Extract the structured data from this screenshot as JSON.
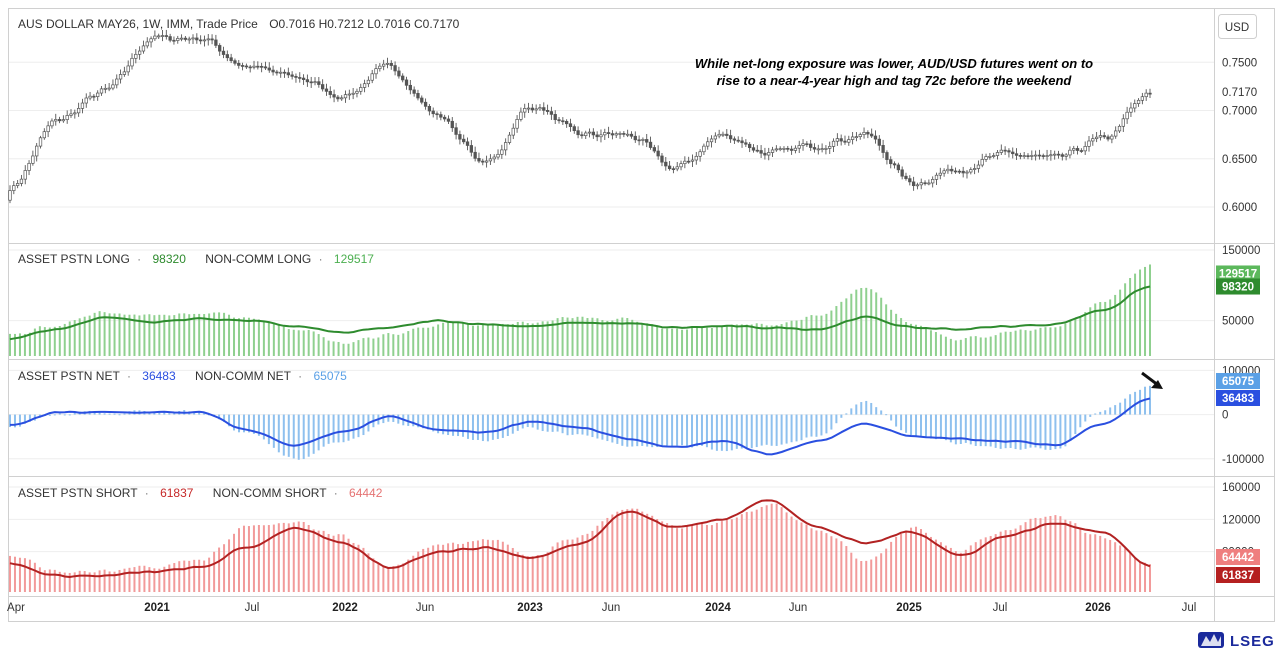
{
  "header": {
    "symbol": "AUS DOLLAR MAY26, 1W, IMM, Trade Price",
    "ohlc": "O0.7016   H0.7212   L0.7016   C0.7170"
  },
  "annotation": {
    "line1": "While net-long exposure was lower, AUD/USD futures went on to",
    "line2": "rise to a near-4-year high and tag 72c before the weekend"
  },
  "currency": "USD",
  "logo": "LSEG",
  "colors": {
    "price": "#555555",
    "long_line": "#2e8b2e",
    "long_hist": "#8fd08f",
    "net_line": "#2a4fe0",
    "net_hist": "#8ec0ee",
    "short_line": "#b22222",
    "short_hist": "#f29a9a",
    "badge_long_hist": "#5cb85c",
    "badge_long_line": "#2e8b2e",
    "badge_net_hist": "#5aa0e6",
    "badge_net_line": "#2a4fe0",
    "badge_short_hist": "#ef7f7f",
    "badge_short_line": "#b52020"
  },
  "panes": {
    "price": {
      "ticks": [
        "0.7500",
        "0.7000",
        "0.6500",
        "0.6000"
      ],
      "last_label": "0.7170"
    },
    "long": {
      "title": "ASSET PSTN LONG",
      "value": "98320",
      "hist_title": "NON-COMM LONG",
      "hist_value": "129517",
      "ticks": [
        "150000",
        "50000"
      ],
      "badge_hist": "129517",
      "badge_line": "98320"
    },
    "net": {
      "title": "ASSET PSTN NET",
      "value": "36483",
      "hist_title": "NON-COMM NET",
      "hist_value": "65075",
      "ticks": [
        "100000",
        "0",
        "-100000"
      ],
      "badge_hist": "65075",
      "badge_line": "36483"
    },
    "short": {
      "title": "ASSET PSTN SHORT",
      "value": "61837",
      "hist_title": "NON-COMM SHORT",
      "hist_value": "64442",
      "ticks": [
        "160000",
        "120000",
        "80000"
      ],
      "badge_hist": "64442",
      "badge_line": "61837"
    }
  },
  "x_axis": {
    "labels": [
      {
        "text": "Apr",
        "bold": false
      },
      {
        "text": "2021",
        "bold": true
      },
      {
        "text": "Jul",
        "bold": false
      },
      {
        "text": "2022",
        "bold": true
      },
      {
        "text": "Jun",
        "bold": false
      },
      {
        "text": "2023",
        "bold": true
      },
      {
        "text": "Jun",
        "bold": false
      },
      {
        "text": "2024",
        "bold": true
      },
      {
        "text": "Jun",
        "bold": false
      },
      {
        "text": "2025",
        "bold": true
      },
      {
        "text": "Jul",
        "bold": false
      },
      {
        "text": "2026",
        "bold": true
      },
      {
        "text": "Jul",
        "bold": false
      }
    ]
  },
  "chart_data": [
    {
      "type": "candlestick",
      "title": "AUS DOLLAR MAY26, 1W, IMM, Trade Price",
      "ylim": [
        0.57,
        0.8
      ],
      "x": [
        "2020-04",
        "2020-07",
        "2020-10",
        "2021-01",
        "2021-04",
        "2021-07",
        "2021-10",
        "2022-01",
        "2022-04",
        "2022-07",
        "2022-10",
        "2023-01",
        "2023-04",
        "2023-07",
        "2023-10",
        "2024-01",
        "2024-04",
        "2024-07",
        "2024-10",
        "2025-01",
        "2025-04",
        "2025-07",
        "2025-10",
        "2026-01",
        "2026-03"
      ],
      "close": [
        0.62,
        0.69,
        0.72,
        0.775,
        0.775,
        0.745,
        0.735,
        0.715,
        0.745,
        0.695,
        0.645,
        0.705,
        0.675,
        0.675,
        0.64,
        0.675,
        0.655,
        0.665,
        0.675,
        0.625,
        0.64,
        0.655,
        0.65,
        0.67,
        0.717
      ],
      "last": {
        "open": 0.7016,
        "high": 0.7212,
        "low": 0.7016,
        "close": 0.717
      }
    },
    {
      "type": "line+bar",
      "title": "ASSET PSTN LONG / NON-COMM LONG",
      "ylim": [
        0,
        150000
      ],
      "x": [
        "2020-04",
        "2020-07",
        "2020-10",
        "2021-01",
        "2021-04",
        "2021-07",
        "2021-10",
        "2022-01",
        "2022-04",
        "2022-07",
        "2022-10",
        "2023-01",
        "2023-04",
        "2023-07",
        "2023-10",
        "2024-01",
        "2024-04",
        "2024-07",
        "2024-10",
        "2025-01",
        "2025-04",
        "2025-07",
        "2025-10",
        "2026-01",
        "2026-03"
      ],
      "series": [
        {
          "name": "ASSET PSTN LONG",
          "type": "line",
          "values": [
            25000,
            38000,
            55000,
            48000,
            53000,
            50000,
            42000,
            33000,
            40000,
            50000,
            45000,
            42000,
            47000,
            46000,
            40000,
            42000,
            40000,
            38000,
            55000,
            40000,
            38000,
            42000,
            45000,
            65000,
            98320
          ]
        },
        {
          "name": "NON-COMM LONG",
          "type": "bar",
          "values": [
            30000,
            45000,
            62000,
            58000,
            60000,
            55000,
            40000,
            18000,
            30000,
            45000,
            42000,
            48000,
            55000,
            52000,
            38000,
            42000,
            45000,
            55000,
            95000,
            45000,
            25000,
            32000,
            40000,
            75000,
            129517
          ]
        }
      ]
    },
    {
      "type": "line+bar",
      "title": "ASSET PSTN NET / NON-COMM NET",
      "ylim": [
        -130000,
        110000
      ],
      "x": [
        "2020-04",
        "2020-07",
        "2020-10",
        "2021-01",
        "2021-04",
        "2021-07",
        "2021-10",
        "2022-01",
        "2022-04",
        "2022-07",
        "2022-10",
        "2023-01",
        "2023-04",
        "2023-07",
        "2023-10",
        "2024-01",
        "2024-04",
        "2024-07",
        "2024-10",
        "2025-01",
        "2025-04",
        "2025-07",
        "2025-10",
        "2026-01",
        "2026-03"
      ],
      "series": [
        {
          "name": "ASSET PSTN NET",
          "type": "line",
          "values": [
            -25000,
            5000,
            5000,
            5000,
            5000,
            -35000,
            -70000,
            -40000,
            -5000,
            -35000,
            -40000,
            -15000,
            -30000,
            -55000,
            -75000,
            -60000,
            -90000,
            -60000,
            -20000,
            -50000,
            -55000,
            -60000,
            -70000,
            -20000,
            36483
          ]
        },
        {
          "name": "NON-COMM NET",
          "type": "bar",
          "values": [
            -30000,
            0,
            5000,
            5000,
            5000,
            -40000,
            -100000,
            -60000,
            -15000,
            -40000,
            -60000,
            -30000,
            -50000,
            -70000,
            -70000,
            -80000,
            -70000,
            -50000,
            30000,
            -50000,
            -65000,
            -75000,
            -80000,
            10000,
            65075
          ]
        }
      ]
    },
    {
      "type": "line+bar",
      "title": "ASSET PSTN SHORT / NON-COMM SHORT",
      "ylim": [
        30000,
        165000
      ],
      "x": [
        "2020-04",
        "2020-07",
        "2020-10",
        "2021-01",
        "2021-04",
        "2021-07",
        "2021-10",
        "2022-01",
        "2022-04",
        "2022-07",
        "2022-10",
        "2023-01",
        "2023-04",
        "2023-07",
        "2023-10",
        "2024-01",
        "2024-04",
        "2024-07",
        "2024-10",
        "2025-01",
        "2025-04",
        "2025-07",
        "2025-10",
        "2026-01",
        "2026-03"
      ],
      "series": [
        {
          "name": "ASSET PSTN SHORT",
          "type": "line",
          "values": [
            65000,
            50000,
            50000,
            55000,
            60000,
            85000,
            110000,
            90000,
            60000,
            80000,
            85000,
            72000,
            90000,
            130000,
            110000,
            120000,
            145000,
            110000,
            90000,
            105000,
            75000,
            100000,
            115000,
            105000,
            61837
          ]
        },
        {
          "name": "NON-COMM SHORT",
          "type": "bar",
          "values": [
            75000,
            55000,
            55000,
            60000,
            70000,
            110000,
            115000,
            100000,
            60000,
            90000,
            95000,
            75000,
            100000,
            135000,
            110000,
            115000,
            140000,
            110000,
            70000,
            110000,
            80000,
            110000,
            125000,
            100000,
            64442
          ]
        }
      ]
    }
  ]
}
